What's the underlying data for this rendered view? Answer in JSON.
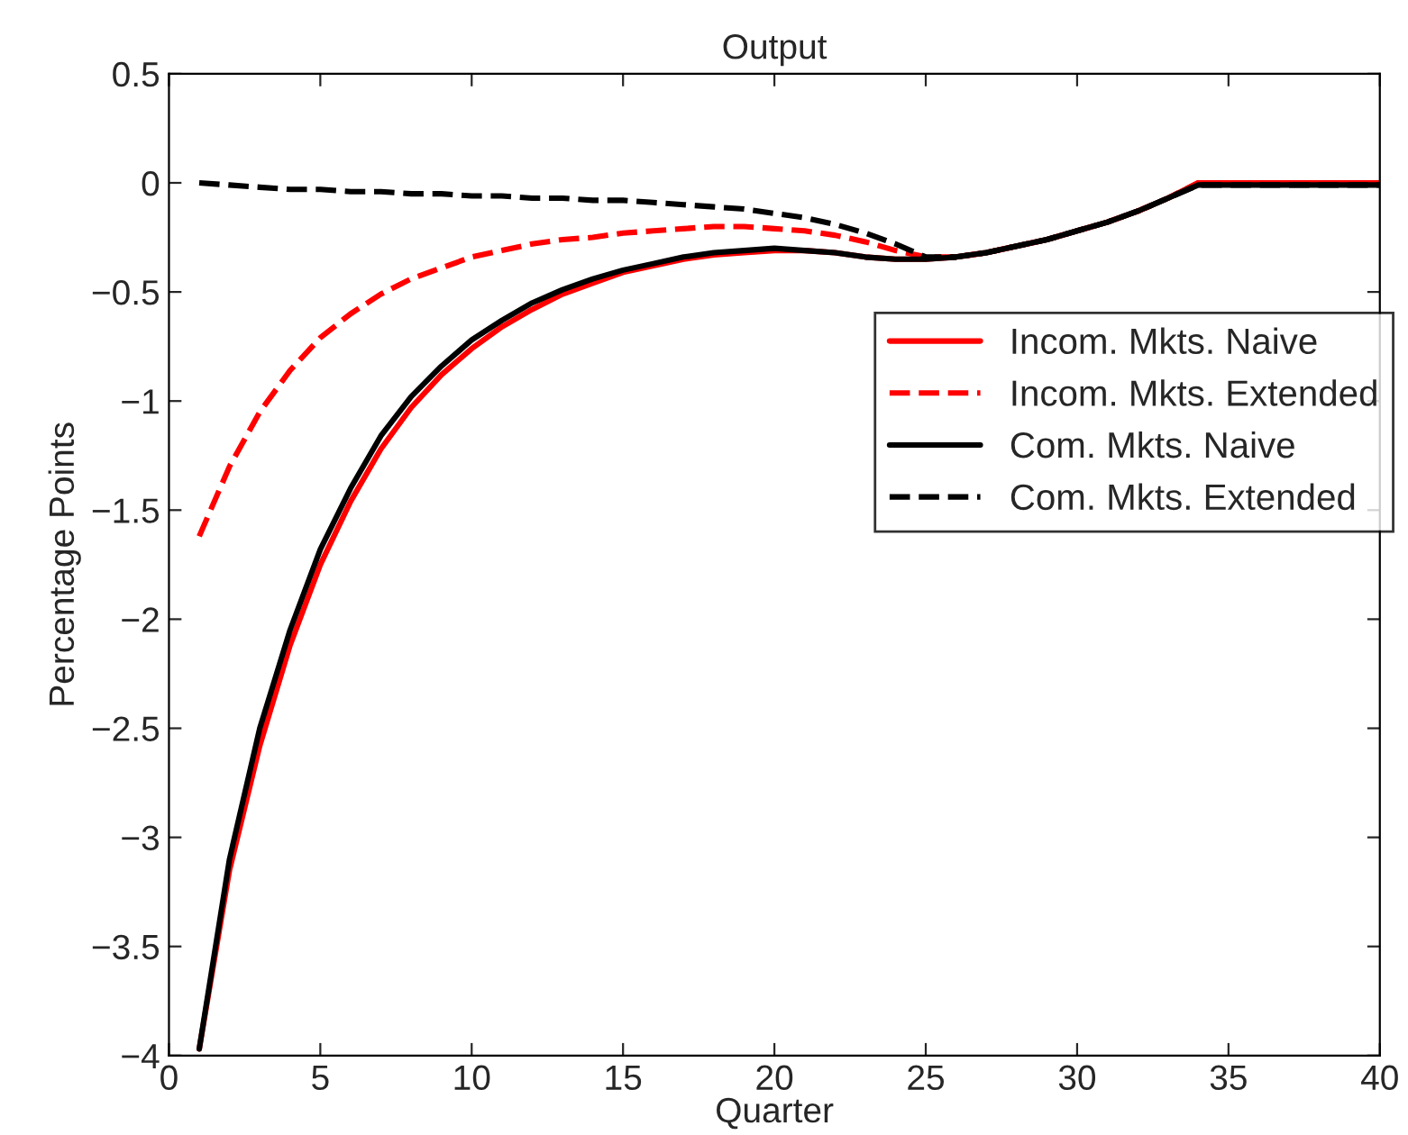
{
  "chart_data": {
    "type": "line",
    "title": "Output",
    "xlabel": "Quarter",
    "ylabel": "Percentage Points",
    "x": [
      1,
      2,
      3,
      4,
      5,
      6,
      7,
      8,
      9,
      10,
      11,
      12,
      13,
      14,
      15,
      16,
      17,
      18,
      19,
      20,
      21,
      22,
      23,
      24,
      25,
      26,
      27,
      28,
      29,
      30,
      31,
      32,
      33,
      34,
      35,
      36,
      37,
      38,
      39,
      40
    ],
    "series": [
      {
        "name": "Incom. Mkts. Naive",
        "color": "#ff0000",
        "line_style": "solid",
        "values": [
          -3.97,
          -3.15,
          -2.58,
          -2.12,
          -1.75,
          -1.46,
          -1.22,
          -1.03,
          -0.88,
          -0.76,
          -0.66,
          -0.58,
          -0.51,
          -0.46,
          -0.41,
          -0.38,
          -0.35,
          -0.33,
          -0.32,
          -0.31,
          -0.31,
          -0.32,
          -0.34,
          -0.35,
          -0.35,
          -0.34,
          -0.32,
          -0.29,
          -0.26,
          -0.22,
          -0.18,
          -0.13,
          -0.07,
          0,
          0,
          0,
          0,
          0,
          0,
          0
        ]
      },
      {
        "name": "Incom. Mkts. Extended",
        "color": "#ff0000",
        "line_style": "dashed",
        "values": [
          -1.62,
          -1.3,
          -1.05,
          -0.86,
          -0.71,
          -0.6,
          -0.51,
          -0.44,
          -0.39,
          -0.34,
          -0.31,
          -0.28,
          -0.26,
          -0.25,
          -0.23,
          -0.22,
          -0.21,
          -0.2,
          -0.2,
          -0.21,
          -0.22,
          -0.24,
          -0.27,
          -0.31,
          -0.34,
          -0.34,
          -0.32,
          -0.29,
          -0.26,
          -0.22,
          -0.18,
          -0.13,
          -0.07,
          0,
          0,
          0,
          0,
          0,
          0,
          0
        ]
      },
      {
        "name": "Com. Mkts. Naive",
        "color": "#000000",
        "line_style": "solid",
        "values": [
          -3.97,
          -3.1,
          -2.5,
          -2.05,
          -1.68,
          -1.4,
          -1.16,
          -0.98,
          -0.84,
          -0.72,
          -0.63,
          -0.55,
          -0.49,
          -0.44,
          -0.4,
          -0.37,
          -0.34,
          -0.32,
          -0.31,
          -0.3,
          -0.31,
          -0.32,
          -0.34,
          -0.35,
          -0.35,
          -0.34,
          -0.32,
          -0.29,
          -0.26,
          -0.22,
          -0.18,
          -0.13,
          -0.07,
          -0.01,
          -0.01,
          -0.01,
          -0.01,
          -0.01,
          -0.01,
          -0.01
        ]
      },
      {
        "name": "Com. Mkts. Extended",
        "color": "#000000",
        "line_style": "dashed",
        "values": [
          0,
          -0.01,
          -0.02,
          -0.03,
          -0.03,
          -0.04,
          -0.04,
          -0.05,
          -0.05,
          -0.06,
          -0.06,
          -0.07,
          -0.07,
          -0.08,
          -0.08,
          -0.09,
          -0.1,
          -0.11,
          -0.12,
          -0.14,
          -0.16,
          -0.19,
          -0.23,
          -0.28,
          -0.34,
          -0.34,
          -0.32,
          -0.29,
          -0.26,
          -0.22,
          -0.18,
          -0.13,
          -0.07,
          -0.01,
          -0.01,
          -0.01,
          -0.01,
          -0.01,
          -0.01,
          -0.01
        ]
      }
    ],
    "xlim": [
      0,
      40
    ],
    "xticks": [
      0,
      5,
      10,
      15,
      20,
      25,
      30,
      35,
      40
    ],
    "ylim": [
      -4,
      0.5
    ],
    "yticks": [
      {
        "value": -4,
        "label": "−4"
      },
      {
        "value": -3.5,
        "label": "−3.5"
      },
      {
        "value": -3,
        "label": "−3"
      },
      {
        "value": -2.5,
        "label": "−2.5"
      },
      {
        "value": -2,
        "label": "−2"
      },
      {
        "value": -1.5,
        "label": "−1.5"
      },
      {
        "value": -1,
        "label": "−1"
      },
      {
        "value": -0.5,
        "label": "−0.5"
      },
      0,
      0.5
    ],
    "grid": false,
    "legend": "right",
    "marker": "none"
  }
}
